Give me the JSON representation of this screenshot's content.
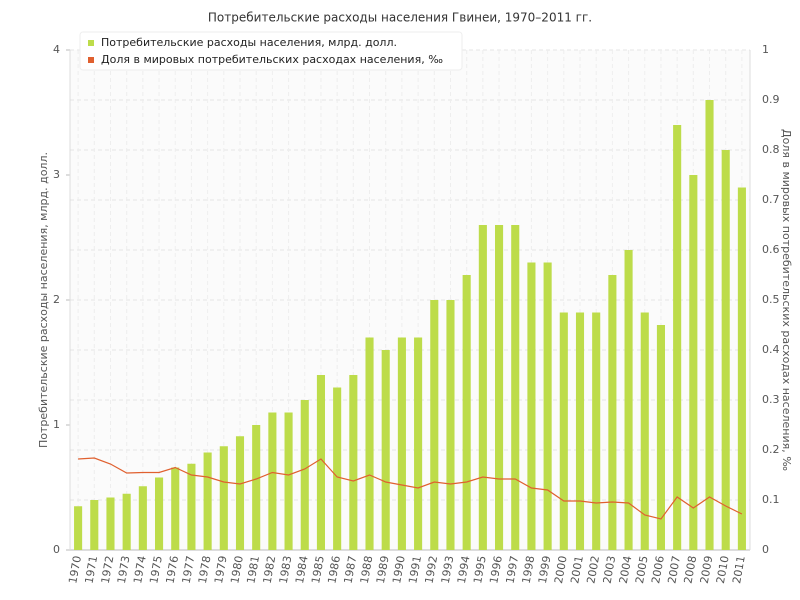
{
  "chart_data": {
    "type": "bar_line",
    "title": "Потребительские расходы населения Гвинеи, 1970–2011 гг.",
    "y_label": "Потребительские расходы населения, млрд. долл.",
    "y2_label": "Доля в мировых потребительских расходах населения, ‰",
    "categories": [
      "1970",
      "1971",
      "1972",
      "1973",
      "1974",
      "1975",
      "1976",
      "1977",
      "1978",
      "1979",
      "1980",
      "1981",
      "1982",
      "1983",
      "1984",
      "1985",
      "1986",
      "1987",
      "1988",
      "1989",
      "1990",
      "1991",
      "1992",
      "1993",
      "1994",
      "1995",
      "1996",
      "1997",
      "1998",
      "1999",
      "2000",
      "2001",
      "2002",
      "2003",
      "2004",
      "2005",
      "2006",
      "2007",
      "2008",
      "2009",
      "2010",
      "2011"
    ],
    "series": [
      {
        "name": "Потребительские расходы населения, млрд. долл.",
        "color": "#bddc4a",
        "kind": "bar",
        "values": [
          0.35,
          0.4,
          0.42,
          0.45,
          0.51,
          0.58,
          0.66,
          0.69,
          0.78,
          0.83,
          0.91,
          1.0,
          1.1,
          1.1,
          1.2,
          1.4,
          1.3,
          1.4,
          1.7,
          1.6,
          1.7,
          1.7,
          2.0,
          2.0,
          2.2,
          2.6,
          2.6,
          2.6,
          2.3,
          2.3,
          1.9,
          1.9,
          1.9,
          2.2,
          2.4,
          1.9,
          1.8,
          3.4,
          3.0,
          3.6,
          3.2,
          2.9
        ]
      },
      {
        "name": "Доля в мировых потребительских расходах населения, ‰",
        "color": "#e0602f",
        "kind": "line",
        "axis": "y2",
        "values": [
          0.182,
          0.184,
          0.172,
          0.154,
          0.155,
          0.155,
          0.165,
          0.15,
          0.146,
          0.136,
          0.132,
          0.142,
          0.155,
          0.15,
          0.162,
          0.182,
          0.146,
          0.138,
          0.15,
          0.136,
          0.13,
          0.124,
          0.136,
          0.132,
          0.136,
          0.146,
          0.142,
          0.142,
          0.124,
          0.12,
          0.098,
          0.098,
          0.094,
          0.096,
          0.094,
          0.07,
          0.062,
          0.106,
          0.084,
          0.106,
          0.088,
          0.072
        ]
      }
    ],
    "ylim": [
      0,
      4
    ],
    "yticks": [
      0,
      1,
      2,
      3,
      4
    ],
    "y2lim": [
      0,
      1
    ],
    "y2ticks": [
      0,
      0.1,
      0.2,
      0.3,
      0.4,
      0.5,
      0.6,
      0.7,
      0.8,
      0.9,
      1
    ],
    "grid": true,
    "legend": "top-left"
  }
}
